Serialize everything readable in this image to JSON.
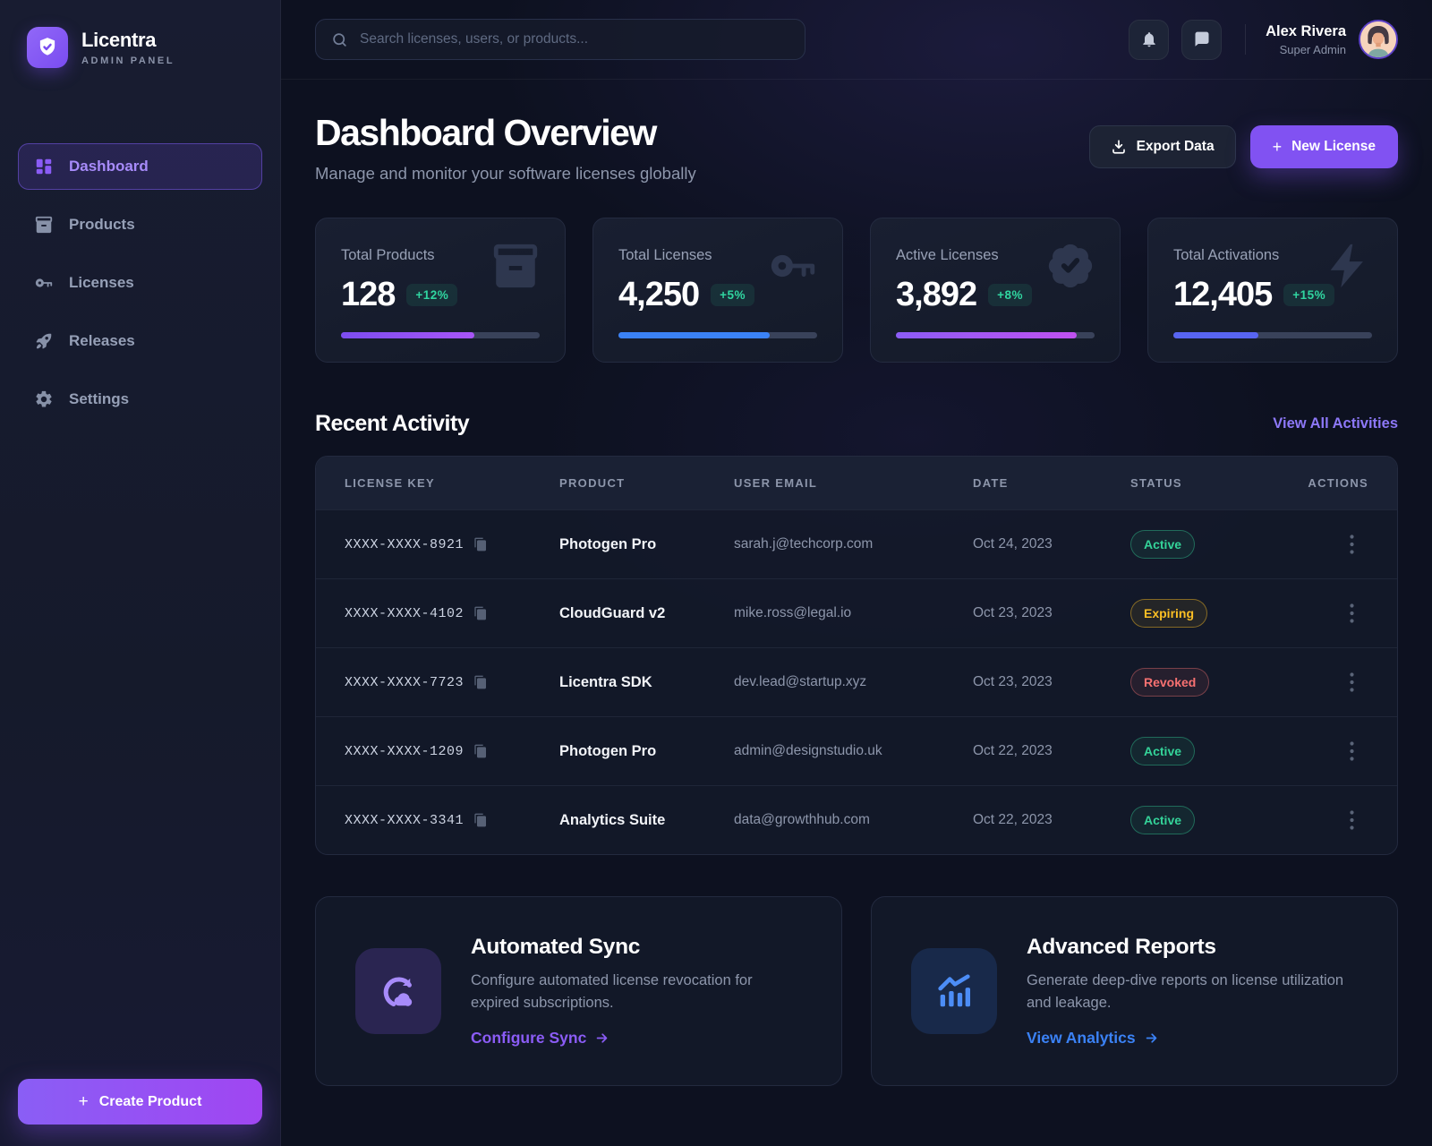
{
  "brand": {
    "name": "Licentra",
    "subtitle": "ADMIN PANEL"
  },
  "sidebar": {
    "items": [
      {
        "label": "Dashboard",
        "icon": "dashboard-icon",
        "state": "active"
      },
      {
        "label": "Products",
        "icon": "products-icon",
        "state": "normal"
      },
      {
        "label": "Licenses",
        "icon": "key-icon",
        "state": "normal"
      },
      {
        "label": "Releases",
        "icon": "rocket-icon",
        "state": "normal"
      },
      {
        "label": "Settings",
        "icon": "gear-icon",
        "state": "normal"
      }
    ],
    "create_button_label": "Create Product"
  },
  "topbar": {
    "search_placeholder": "Search licenses, users, or products...",
    "user": {
      "name": "Alex Rivera",
      "role": "Super Admin"
    }
  },
  "header": {
    "title": "Dashboard Overview",
    "subtitle": "Manage and monitor your software licenses globally",
    "export_label": "Export Data",
    "new_license_label": "New License"
  },
  "stats": [
    {
      "label": "Total Products",
      "value": "128",
      "delta": "+12%",
      "icon": "box-icon",
      "bar": {
        "width": "67%",
        "color": "linear-gradient(90deg,#7c4df0,#a855f7)"
      }
    },
    {
      "label": "Total Licenses",
      "value": "4,250",
      "delta": "+5%",
      "icon": "key-icon",
      "bar": {
        "width": "76%",
        "color": "#3b82f6"
      }
    },
    {
      "label": "Active Licenses",
      "value": "3,892",
      "delta": "+8%",
      "icon": "badge-check-icon",
      "bar": {
        "width": "91%",
        "color": "linear-gradient(90deg,#8b5cf6,#c051f0)"
      }
    },
    {
      "label": "Total Activations",
      "value": "12,405",
      "delta": "+15%",
      "icon": "bolt-icon",
      "bar": {
        "width": "43%",
        "color": "#5865f2"
      }
    }
  ],
  "activity": {
    "title": "Recent Activity",
    "view_all_label": "View All Activities",
    "columns": [
      "LICENSE KEY",
      "PRODUCT",
      "USER EMAIL",
      "DATE",
      "STATUS",
      "ACTIONS"
    ],
    "rows": [
      {
        "key": "XXXX-XXXX-8921",
        "product": "Photogen Pro",
        "email": "sarah.j@techcorp.com",
        "date": "Oct 24, 2023",
        "status": "Active"
      },
      {
        "key": "XXXX-XXXX-4102",
        "product": "CloudGuard v2",
        "email": "mike.ross@legal.io",
        "date": "Oct 23, 2023",
        "status": "Expiring"
      },
      {
        "key": "XXXX-XXXX-7723",
        "product": "Licentra SDK",
        "email": "dev.lead@startup.xyz",
        "date": "Oct 23, 2023",
        "status": "Revoked"
      },
      {
        "key": "XXXX-XXXX-1209",
        "product": "Photogen Pro",
        "email": "admin@designstudio.uk",
        "date": "Oct 22, 2023",
        "status": "Active"
      },
      {
        "key": "XXXX-XXXX-3341",
        "product": "Analytics Suite",
        "email": "data@growthhub.com",
        "date": "Oct 22, 2023",
        "status": "Active"
      }
    ]
  },
  "promos": [
    {
      "title": "Automated Sync",
      "description": "Configure automated license revocation for expired subscriptions.",
      "link_label": "Configure Sync",
      "icon": "cloud-sync-icon",
      "icon_bg": "rgba(139,92,246,0.20)",
      "accent": "#a78bfa",
      "link_color": "#8b5cf6"
    },
    {
      "title": "Advanced Reports",
      "description": "Generate deep-dive reports on license utilization and leakage.",
      "link_label": "View Analytics",
      "icon": "chart-icon",
      "icon_bg": "rgba(59,130,246,0.17)",
      "accent": "#4c8df6",
      "link_color": "#3b82f6"
    }
  ],
  "colors": {
    "accent_purple": "#8b5cf6",
    "accent_blue": "#3b82f6",
    "status_active": "#34d399",
    "status_expiring": "#fbbf24",
    "status_revoked": "#f87171",
    "delta_green": "#30d5a0"
  }
}
